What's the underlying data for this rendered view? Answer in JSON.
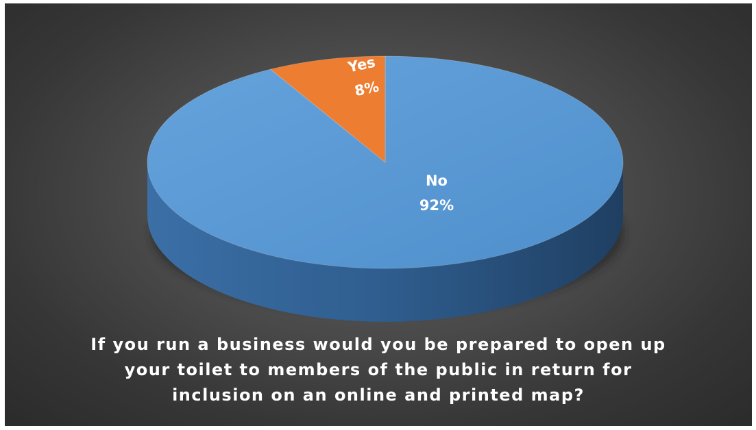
{
  "chart_data": {
    "type": "pie",
    "style": "3d",
    "title": "",
    "slices": [
      {
        "category": "No",
        "percent_label": "92%",
        "value": 92,
        "color": "#5b9bd5"
      },
      {
        "category": "Yes",
        "percent_label": "8%",
        "value": 8,
        "color": "#ed7d31"
      }
    ]
  },
  "caption": {
    "lines": [
      "If you run a business would you be prepared to open up",
      "your toilet to members of the public in return for",
      "inclusion on an online and printed map?"
    ]
  },
  "colors": {
    "background": "#3f3f3f",
    "blue_side_dark": "#2a4f78",
    "orange_side_dark": "#a85622"
  }
}
